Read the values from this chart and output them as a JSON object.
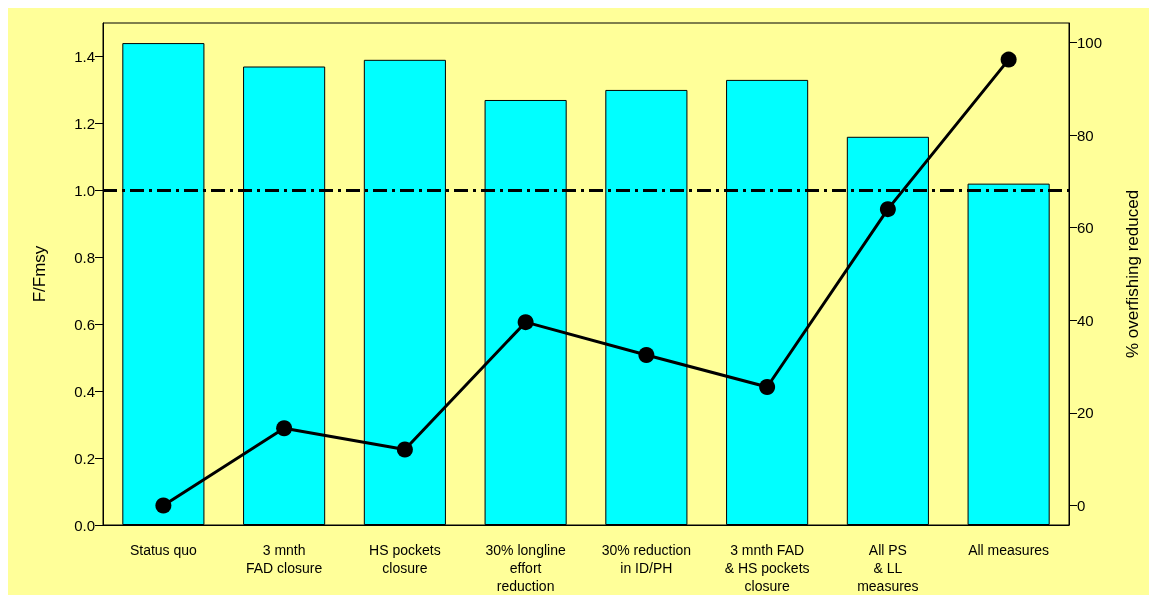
{
  "chart_data": {
    "type": "bar",
    "categories": [
      "Status quo",
      "3 mnth\nFAD closure",
      "HS pockets\nclosure",
      "30% longline\neffort\nreduction",
      "30% reduction\nin ID/PH",
      "3 mnth FAD\n& HS pockets\nclosure",
      "All PS\n& LL\nmeasures",
      "All measures"
    ],
    "ylabel": "F/Fmsy",
    "y2label": "% overfishing reduced",
    "ylim": [
      0,
      1.5
    ],
    "yticks": [
      {
        "value": 0,
        "label": "0.0"
      },
      {
        "value": 0.2,
        "label": "0.2"
      },
      {
        "value": 0.4,
        "label": "0.4"
      },
      {
        "value": 0.6,
        "label": "0.6"
      },
      {
        "value": 0.8,
        "label": "0.8"
      },
      {
        "value": 1.0,
        "label": "1.0"
      },
      {
        "value": 1.2,
        "label": "1.2"
      },
      {
        "value": 1.4,
        "label": "1.4"
      }
    ],
    "y2lim": [
      -4.2,
      104.2
    ],
    "y2ticks": [
      0,
      20,
      40,
      60,
      80,
      100
    ],
    "series": [
      {
        "color": "#00ffff",
        "values": [
          1.44,
          1.37,
          1.39,
          1.27,
          1.3,
          1.33,
          1.16,
          1.02
        ]
      },
      {
        "type": "line",
        "axis": "y2",
        "color": "#000000",
        "marker": "circle",
        "values": [
          0,
          16.7,
          12.1,
          39.6,
          32.5,
          25.6,
          64,
          96.3
        ]
      }
    ],
    "ref_lines": [
      {
        "axis": "y",
        "value": 1.0,
        "line_style": "dashdot",
        "color": "#000000"
      }
    ],
    "grid": false
  }
}
